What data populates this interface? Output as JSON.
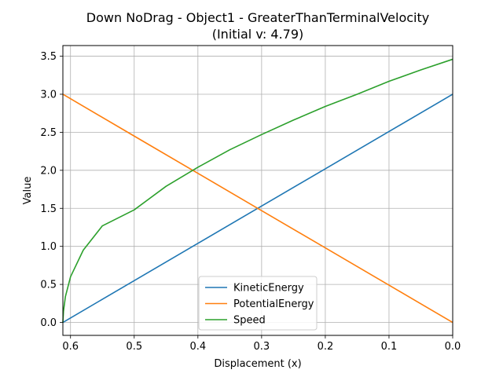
{
  "chart_data": {
    "type": "line",
    "title_line1": "Down NoDrag - Object1 - GreaterThanTerminalVelocity",
    "title_line2": "(Initial v: 4.79)",
    "xlabel": "Displacement (x)",
    "ylabel": "Value",
    "xlim": [
      0.612,
      0.0
    ],
    "ylim": [
      -0.17,
      3.64
    ],
    "x_inverted": true,
    "grid": true,
    "legend_position": "lower center",
    "xticks": [
      0.6,
      0.5,
      0.4,
      0.3,
      0.2,
      0.1,
      0.0
    ],
    "xtick_labels": [
      "0.6",
      "0.5",
      "0.4",
      "0.3",
      "0.2",
      "0.1",
      "0.0"
    ],
    "yticks": [
      0.0,
      0.5,
      1.0,
      1.5,
      2.0,
      2.5,
      3.0,
      3.5
    ],
    "ytick_labels": [
      "0.0",
      "0.5",
      "1.0",
      "1.5",
      "2.0",
      "2.5",
      "3.0",
      "3.5"
    ],
    "series": [
      {
        "name": "KineticEnergy",
        "color": "#1f77b4",
        "points": [
          [
            0.612,
            0.0
          ],
          [
            0.5,
            0.55
          ],
          [
            0.4,
            1.04
          ],
          [
            0.3,
            1.53
          ],
          [
            0.2,
            2.02
          ],
          [
            0.1,
            2.51
          ],
          [
            0.0,
            3.0
          ]
        ]
      },
      {
        "name": "PotentialEnergy",
        "color": "#ff7f0e",
        "points": [
          [
            0.612,
            3.0
          ],
          [
            0.5,
            2.45
          ],
          [
            0.4,
            1.96
          ],
          [
            0.3,
            1.47
          ],
          [
            0.2,
            0.98
          ],
          [
            0.1,
            0.49
          ],
          [
            0.0,
            0.0
          ]
        ]
      },
      {
        "name": "Speed",
        "color": "#2ca02c",
        "points": [
          [
            0.612,
            0.0
          ],
          [
            0.611,
            0.15
          ],
          [
            0.608,
            0.34
          ],
          [
            0.6,
            0.6
          ],
          [
            0.58,
            0.95
          ],
          [
            0.55,
            1.27
          ],
          [
            0.5,
            1.48
          ],
          [
            0.45,
            1.79
          ],
          [
            0.4,
            2.04
          ],
          [
            0.35,
            2.27
          ],
          [
            0.3,
            2.47
          ],
          [
            0.25,
            2.66
          ],
          [
            0.2,
            2.84
          ],
          [
            0.15,
            3.0
          ],
          [
            0.1,
            3.17
          ],
          [
            0.05,
            3.32
          ],
          [
            0.0,
            3.46
          ]
        ]
      }
    ]
  }
}
